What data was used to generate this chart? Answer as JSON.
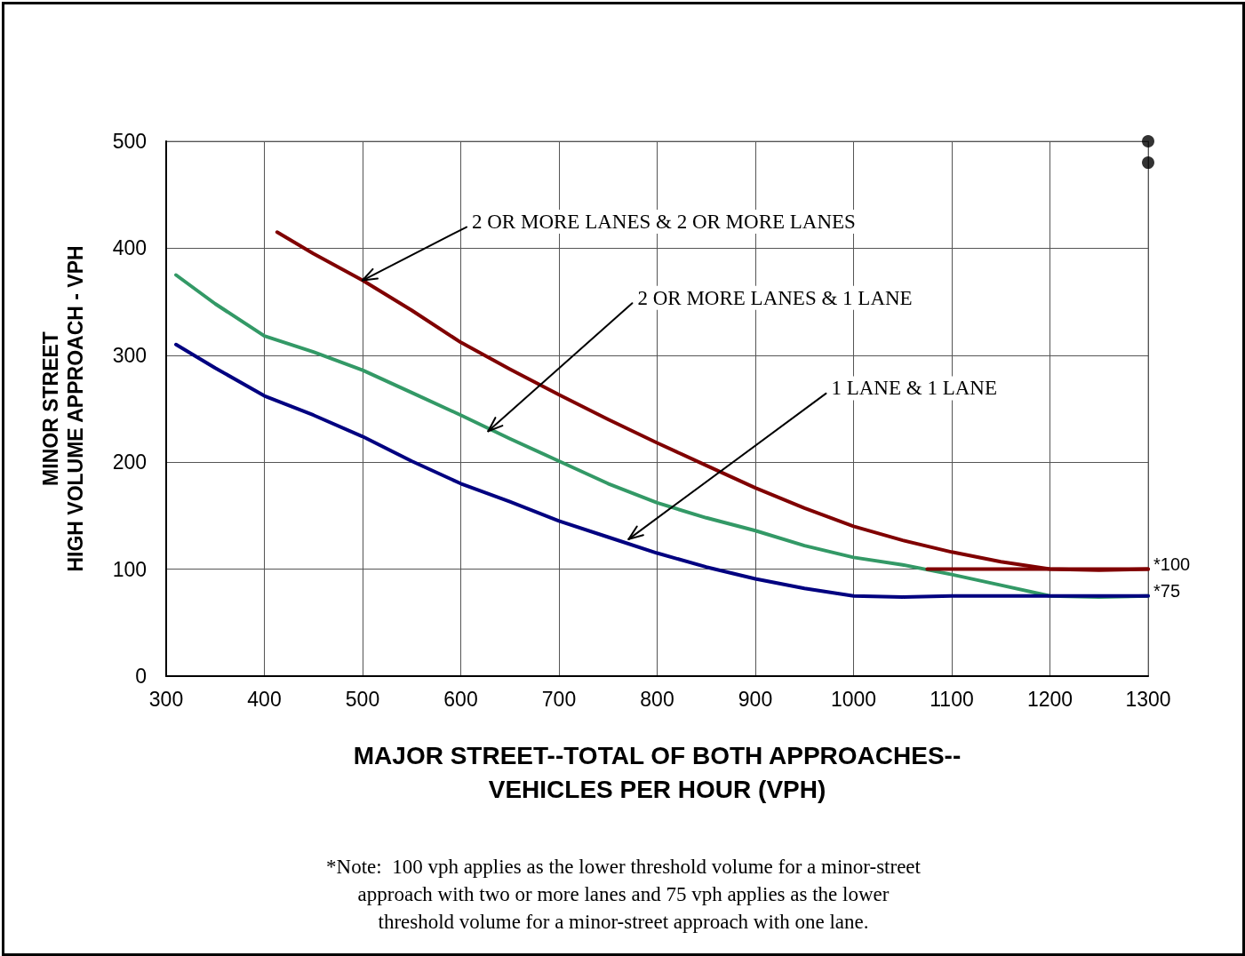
{
  "chart_data": {
    "type": "line",
    "xlabel": "MAJOR STREET--TOTAL OF BOTH APPROACHES--\nVEHICLES PER HOUR (VPH)",
    "ylabel": "MINOR STREET\nHIGH VOLUME APPROACH - VPH",
    "xlim": [
      300,
      1300
    ],
    "xticks": [
      300,
      400,
      500,
      600,
      700,
      800,
      900,
      1000,
      1100,
      1200,
      1300
    ],
    "ylim": [
      0,
      500
    ],
    "yticks": [
      0,
      100,
      200,
      300,
      400,
      500
    ],
    "grid": true,
    "line_style": "solid",
    "series": [
      {
        "color": "#800000",
        "marker": "none",
        "x": [
          413,
          450,
          500,
          550,
          600,
          650,
          700,
          750,
          800,
          850,
          900,
          950,
          1000,
          1050,
          1100,
          1150,
          1200,
          1250,
          1300
        ],
        "values": [
          415,
          395,
          370,
          342,
          312,
          287,
          263,
          240,
          218,
          197,
          176,
          157,
          140,
          127,
          116,
          107,
          100,
          99,
          100
        ]
      },
      {
        "color": "#339966",
        "marker": "none",
        "x": [
          310,
          350,
          400,
          450,
          500,
          550,
          600,
          650,
          700,
          750,
          800,
          850,
          900,
          950,
          1000,
          1050,
          1100,
          1150,
          1200,
          1250,
          1300
        ],
        "values": [
          375,
          348,
          318,
          303,
          286,
          265,
          244,
          222,
          201,
          180,
          162,
          148,
          136,
          122,
          111,
          104,
          95,
          85,
          75,
          74,
          75
        ]
      },
      {
        "color": "#000080",
        "marker": "none",
        "x": [
          310,
          350,
          400,
          450,
          500,
          550,
          600,
          650,
          700,
          750,
          800,
          850,
          900,
          950,
          1000,
          1050,
          1100,
          1150,
          1200,
          1250,
          1300
        ],
        "values": [
          310,
          288,
          262,
          244,
          224,
          201,
          180,
          163,
          145,
          130,
          115,
          102,
          91,
          82,
          75,
          74,
          75,
          75,
          75,
          75,
          75
        ]
      },
      {
        "color": "#800000",
        "marker": "none",
        "x": [
          1075,
          1300
        ],
        "values": [
          100,
          100
        ]
      },
      {
        "type": "scatter",
        "marker": "circle",
        "color": "#000000",
        "x": [
          1300,
          1300
        ],
        "values": [
          500,
          480
        ]
      }
    ],
    "annotations": [
      {
        "text": "2 OR MORE LANES & 2 OR MORE LANES",
        "x": 500,
        "y": 370
      },
      {
        "text": "2 OR MORE LANES & 1 LANE",
        "x": 628,
        "y": 229
      },
      {
        "text": "1 LANE & 1 LANE",
        "x": 771,
        "y": 128
      },
      {
        "text": "*100",
        "x": 1300,
        "y": 100
      },
      {
        "text": "*75",
        "x": 1300,
        "y": 75
      },
      "*Note:  100 vph applies as the lower threshold volume for a minor-street\napproach with two or more lanes and 75 vph applies as the lower\nthreshold volume for a minor-street approach with one lane."
    ]
  }
}
